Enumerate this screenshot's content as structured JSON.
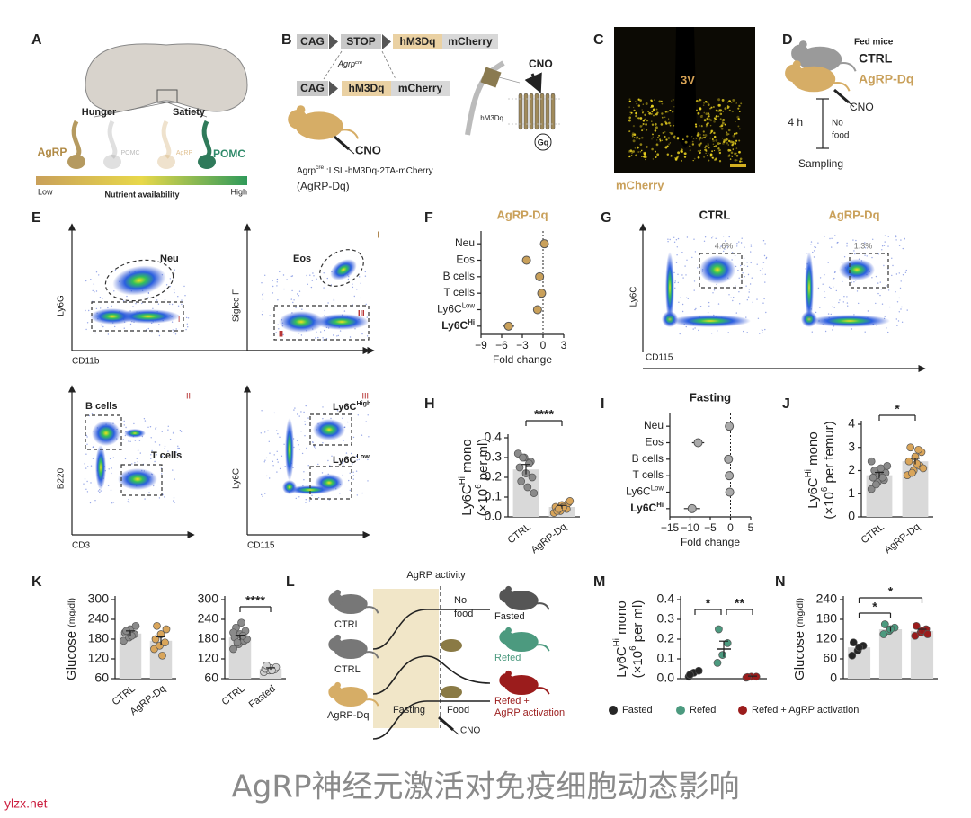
{
  "panel_A": {
    "label": "A",
    "hunger": "Hunger",
    "satiety": "Satiety",
    "agrp": "AgRP",
    "pomc_faded": "POMC",
    "agrp_faded": "AgRP",
    "pomc": "POMC",
    "scale": {
      "low": "Low",
      "title": "Nutrient availability",
      "high": "High"
    }
  },
  "panel_B": {
    "label": "B",
    "construct1": [
      "CAG",
      "STOP",
      "hM3Dq",
      "mCherry"
    ],
    "recombinase": [
      {
        "text": "Agrp"
      },
      {
        "sup": "cre"
      }
    ],
    "construct2": [
      "CAG",
      "hM3Dq",
      "mCherry"
    ],
    "drug": "CNO",
    "genotype": [
      {
        "text": "Agrp"
      },
      {
        "sup": "cre"
      },
      {
        "text": "::LSL-hM3Dq-2TA-mCherry"
      }
    ],
    "model": "(AgRP-Dq)",
    "receptor_drug": "CNO",
    "receptor": "hM3Dq",
    "g_protein": "Gq"
  },
  "panel_C": {
    "label": "C",
    "region": "3V",
    "channel": "mCherry"
  },
  "panel_D": {
    "label": "D",
    "group_title": "Fed mice",
    "ctrl": "CTRL",
    "agrp": "AgRP-Dq",
    "drug": "CNO",
    "duration": "4 h",
    "condition": [
      "No",
      "food"
    ],
    "endpoint": "Sampling"
  },
  "panel_E": {
    "label": "E",
    "plots": [
      {
        "y_label": "Ly6G",
        "x_label": "CD11b",
        "gates": [
          [
            {
              "text": "Neu"
            }
          ]
        ],
        "marks": [
          "I"
        ]
      },
      {
        "y_label": "Siglec F",
        "tag": "I",
        "gates": [
          [
            {
              "text": "Eos"
            }
          ]
        ],
        "marks": [
          "II",
          "III"
        ]
      },
      {
        "y_label": "B220",
        "x_label": "CD3",
        "tag": "II",
        "gates": [
          [
            {
              "text": "B cells"
            }
          ],
          [
            {
              "text": "T cells"
            }
          ]
        ]
      },
      {
        "y_label": "Ly6C",
        "x_label": "CD115",
        "tag": "III",
        "gates": [
          [
            {
              "text": "Ly6C"
            },
            {
              "sup": "High"
            }
          ],
          [
            {
              "text": "Ly6C"
            },
            {
              "sup": "Low"
            }
          ]
        ]
      }
    ]
  },
  "panel_F": {
    "label": "F",
    "title": "AgRP-Dq",
    "color": "#c9a05a",
    "x_label": "Fold change",
    "xlim": [
      -9,
      3
    ],
    "xticks": [
      {
        "value": -9,
        "label": "−9"
      },
      {
        "value": -6,
        "label": "−6"
      },
      {
        "value": -3,
        "label": "−3"
      },
      0,
      3
    ],
    "rows": [
      {
        "label": [
          {
            "text": "Neu"
          }
        ],
        "value": 0.2,
        "error": 0.3
      },
      {
        "label": [
          {
            "text": "Eos"
          }
        ],
        "value": -2.4,
        "error": 0.6
      },
      {
        "label": [
          {
            "text": "B cells"
          }
        ],
        "value": -0.5,
        "error": 0.3
      },
      {
        "label": [
          {
            "text": "T cells"
          }
        ],
        "value": -0.2,
        "error": 0.2
      },
      {
        "label": [
          {
            "text": "Ly6C"
          },
          {
            "sup": "Low"
          }
        ],
        "value": -0.8,
        "error": 0.4
      },
      {
        "label": [
          {
            "text": "Ly6C"
          },
          {
            "sup": "Hi"
          }
        ],
        "value": -5.0,
        "error": 0.8,
        "bold": true
      }
    ]
  },
  "panel_G": {
    "label": "G",
    "y_label": "Ly6C",
    "x_label": "CD115",
    "plots": [
      {
        "title": "CTRL",
        "gate": "4.6%"
      },
      {
        "title": "AgRP-Dq",
        "gate": "1.3%"
      }
    ]
  },
  "panel_H": {
    "label": "H",
    "y_label": [
      [
        {
          "text": "Ly6C"
        },
        {
          "sup": "Hi"
        },
        {
          "text": " mono"
        }
      ],
      [
        {
          "text": "(×10"
        },
        {
          "sup": "6"
        },
        {
          "text": " per ml)"
        }
      ]
    ],
    "ylim": [
      0,
      0.4
    ],
    "yticks": [
      {
        "value": 0,
        "label": "0.0"
      },
      0.1,
      0.2,
      0.3,
      0.4
    ],
    "bar_color": "#d9d9d9",
    "significance": [
      "****"
    ],
    "groups": [
      {
        "name": "CTRL",
        "color": "#8a8a8a",
        "mean": 0.24,
        "error": 0.025,
        "values": [
          0.32,
          0.3,
          0.28,
          0.25,
          0.22,
          0.2,
          0.18,
          0.15,
          0.12,
          0.3,
          0.27
        ]
      },
      {
        "name": "AgRP-Dq",
        "color": "#d9a55a",
        "mean": 0.05,
        "error": 0.008,
        "values": [
          0.02,
          0.03,
          0.04,
          0.05,
          0.06,
          0.07,
          0.03,
          0.05,
          0.08,
          0.04
        ]
      }
    ]
  },
  "panel_I": {
    "label": "I",
    "title": "Fasting",
    "color": "#aaaaaa",
    "x_label": "Fold change",
    "xlim": [
      -15,
      5
    ],
    "xticks": [
      {
        "value": -15,
        "label": "−15"
      },
      {
        "value": -10,
        "label": "−10"
      },
      {
        "value": -5,
        "label": "−5"
      },
      0,
      5
    ],
    "rows": [
      {
        "label": [
          {
            "text": "Neu"
          }
        ],
        "value": -0.3,
        "error": 0.3
      },
      {
        "label": [
          {
            "text": "Eos"
          }
        ],
        "value": -8.0,
        "error": 1.5
      },
      {
        "label": [
          {
            "text": "B cells"
          }
        ],
        "value": -0.5,
        "error": 0.3
      },
      {
        "label": [
          {
            "text": "T cells"
          }
        ],
        "value": -0.3,
        "error": 0.2
      },
      {
        "label": [
          {
            "text": "Ly6C"
          },
          {
            "sup": "Low"
          }
        ],
        "value": -0.2,
        "error": 0.2
      },
      {
        "label": [
          {
            "text": "Ly6C"
          },
          {
            "sup": "Hi"
          }
        ],
        "value": -9.5,
        "error": 2.0,
        "bold": true
      }
    ]
  },
  "panel_J": {
    "label": "J",
    "y_label": [
      [
        {
          "text": "Ly6C"
        },
        {
          "sup": "Hi"
        },
        {
          "text": " mono"
        }
      ],
      [
        {
          "text": "(×10"
        },
        {
          "sup": "6"
        },
        {
          "text": " per femur)"
        }
      ]
    ],
    "ylim": [
      0,
      4
    ],
    "yticks": [
      0,
      1,
      2,
      3,
      4
    ],
    "bar_color": "#d9d9d9",
    "significance": [
      "*"
    ],
    "groups": [
      {
        "name": "CTRL",
        "color": "#8a8a8a",
        "mean": 1.8,
        "error": 0.12,
        "values": [
          1.2,
          1.5,
          1.6,
          1.7,
          1.8,
          1.9,
          2.0,
          2.1,
          2.2,
          1.4,
          1.7,
          2.4
        ]
      },
      {
        "name": "AgRP-Dq",
        "color": "#d9a55a",
        "mean": 2.4,
        "error": 0.13,
        "values": [
          1.8,
          2.0,
          2.2,
          2.4,
          2.6,
          2.8,
          3.0,
          2.3,
          2.1,
          1.9,
          2.9
        ]
      }
    ]
  },
  "panel_K": {
    "label": "K",
    "y_label": [
      [
        {
          "text": "Glucose "
        },
        {
          "small": "(mg/dl)"
        }
      ]
    ],
    "charts": [
      {
        "ylim": [
          60,
          300
        ],
        "yticks": [
          60,
          120,
          180,
          240,
          300
        ],
        "bar_color": "#d9d9d9",
        "significance": [],
        "groups": [
          {
            "name": "CTRL",
            "color": "#8a8a8a",
            "mean": 197,
            "error": 8,
            "values": [
              175,
              185,
              195,
              200,
              210,
              220,
              205,
              190
            ]
          },
          {
            "name": "AgRP-Dq",
            "color": "#d9a55a",
            "mean": 175,
            "error": 12,
            "values": [
              150,
              160,
              170,
              180,
              195,
              210,
              220,
              130
            ]
          }
        ]
      },
      {
        "ylim": [
          60,
          300
        ],
        "yticks": [
          60,
          120,
          180,
          240,
          300
        ],
        "bar_color": "#d9d9d9",
        "significance": [
          "****"
        ],
        "groups": [
          {
            "name": "CTRL",
            "color": "#8a8a8a",
            "mean": 185,
            "error": 7,
            "values": [
              150,
              165,
              175,
              185,
              195,
              205,
              215,
              230,
              180,
              170,
              190,
              200
            ]
          },
          {
            "name": "Fasted",
            "color": "#d0d0d0",
            "mean": 90,
            "error": 3,
            "values": [
              80,
              85,
              88,
              90,
              92,
              95,
              100,
              85
            ]
          }
        ]
      }
    ]
  },
  "panel_L": {
    "label": "L",
    "activity": "AgRP activity",
    "no_food": [
      "No",
      "food"
    ],
    "rows": [
      "CTRL",
      "CTRL",
      "AgRP-Dq"
    ],
    "phase": "Fasting",
    "food": "Food",
    "outcomes": [
      "Fasted",
      "Refed",
      "Refed +"
    ],
    "outcome_extra": "AgRP activation",
    "drug": "CNO"
  },
  "panel_M": {
    "label": "M",
    "y_label": [
      [
        {
          "text": "Ly6C"
        },
        {
          "sup": "Hi"
        },
        {
          "text": " mono"
        }
      ],
      [
        {
          "text": "(×10"
        },
        {
          "sup": "6"
        },
        {
          "text": " per ml)"
        }
      ]
    ],
    "ylim": [
      0,
      0.4
    ],
    "yticks": [
      {
        "value": 0,
        "label": "0.0"
      },
      0.1,
      0.2,
      0.3,
      0.4
    ],
    "bar_color": null,
    "legend": true,
    "significance": [
      "*",
      "**"
    ],
    "groups": [
      {
        "name": "Fasted",
        "color": "#262626",
        "mean": 0.03,
        "error": 0.01,
        "values": [
          0.01,
          0.03,
          0.04,
          0.02
        ]
      },
      {
        "name": "Refed",
        "color": "#4c9a7f",
        "mean": 0.15,
        "error": 0.04,
        "values": [
          0.08,
          0.12,
          0.18,
          0.25
        ]
      },
      {
        "name": "Refed + AgRP activation",
        "color": "#9b1c1c",
        "mean": 0.01,
        "error": 0.003,
        "values": [
          0.005,
          0.01,
          0.01,
          0.008
        ]
      }
    ]
  },
  "panel_N": {
    "label": "N",
    "y_label": [
      [
        {
          "text": "Glucose "
        },
        {
          "small": "(mg/dl)"
        }
      ]
    ],
    "ylim": [
      0,
      240
    ],
    "yticks": [
      0,
      60,
      120,
      180,
      240
    ],
    "bar_color": "#d9d9d9",
    "legend": true,
    "significance": [
      "*",
      "*"
    ],
    "groups": [
      {
        "name": "Fasted",
        "color": "#262626",
        "mean": 95,
        "error": 8,
        "values": [
          70,
          85,
          100,
          110,
          95
        ]
      },
      {
        "name": "Refed",
        "color": "#4c9a7f",
        "mean": 150,
        "error": 7,
        "values": [
          135,
          145,
          155,
          165,
          150
        ]
      },
      {
        "name": "Refed + AgRP activation",
        "color": "#9b1c1c",
        "mean": 145,
        "error": 5,
        "values": [
          130,
          140,
          150,
          160,
          145,
          135
        ]
      }
    ]
  },
  "caption": "AgRP神经元激活对免疫细胞动态影响",
  "watermark": "ylzx.net"
}
